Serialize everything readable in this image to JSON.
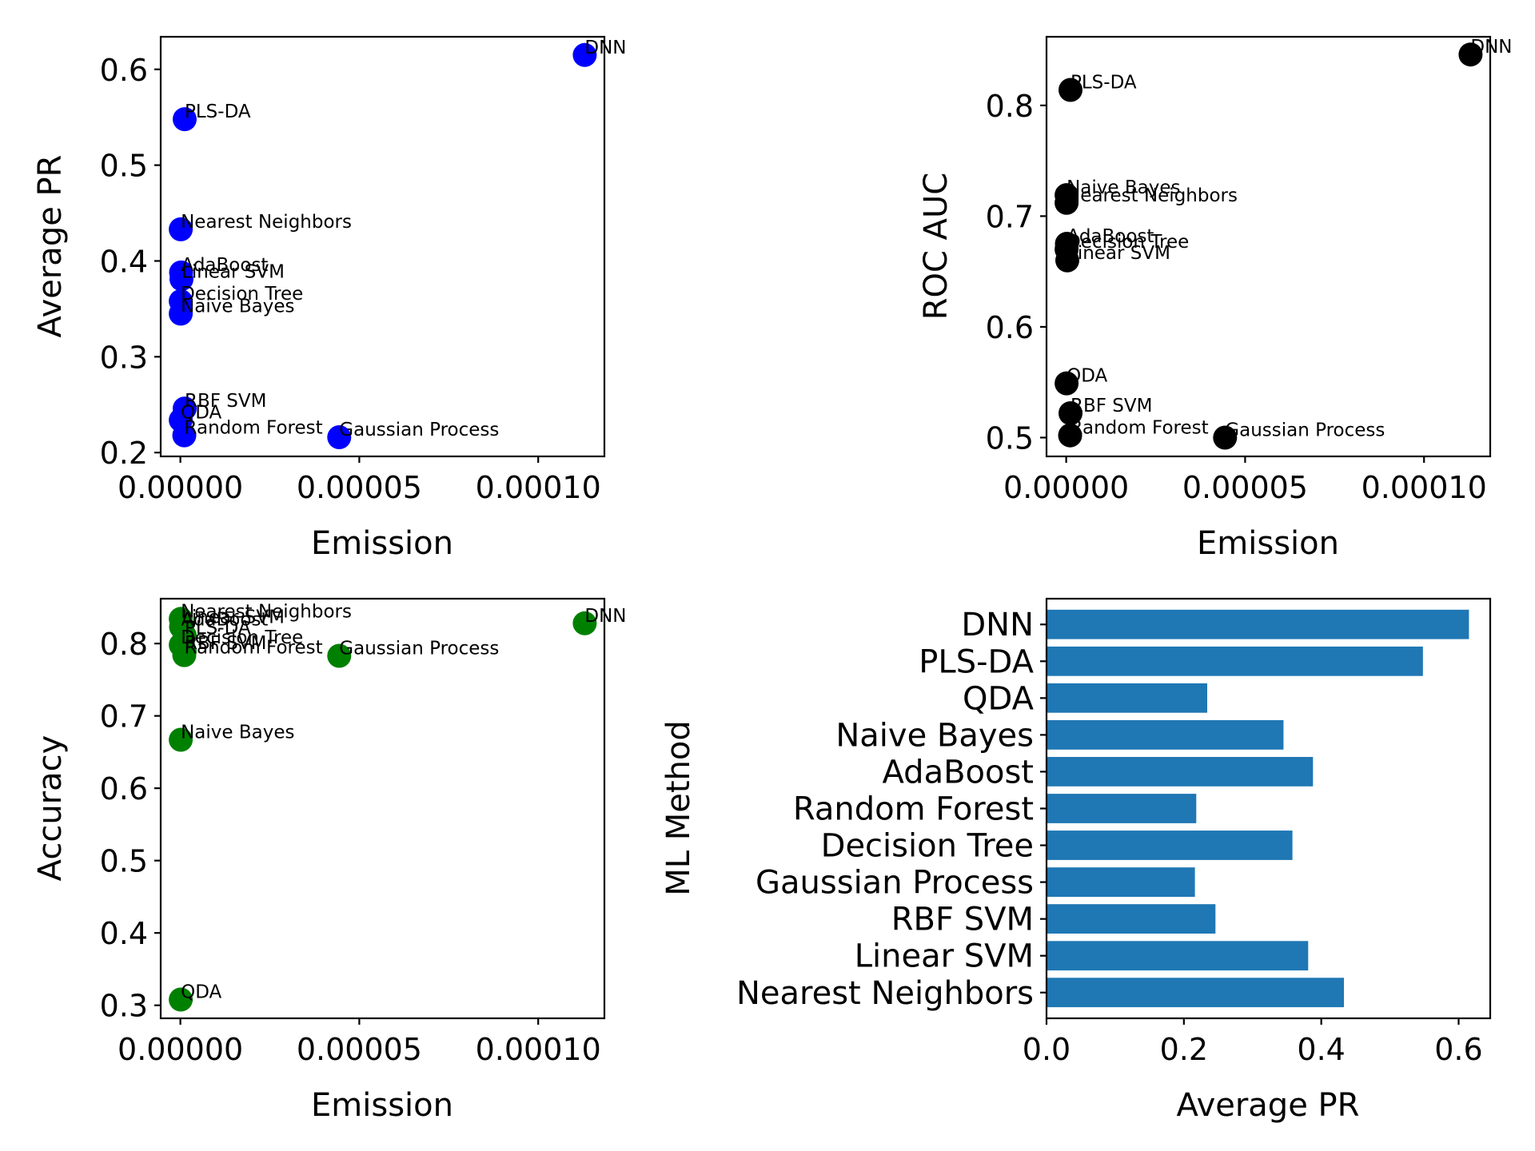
{
  "figure": {
    "background": "#ffffff"
  },
  "chart_data": [
    {
      "id": "avgpr",
      "type": "scatter",
      "title": "",
      "xlabel": "Emission",
      "ylabel": "Average PR",
      "color": "#0000ff",
      "xlim": [
        -5.5e-06,
        0.0001185
      ],
      "ylim": [
        0.196,
        0.634
      ],
      "xticks": [
        0,
        5e-05,
        0.0001
      ],
      "xtick_labels": [
        "0.00000",
        "0.00005",
        "0.00010"
      ],
      "yticks": [
        0.2,
        0.3,
        0.4,
        0.5,
        0.6
      ],
      "ytick_labels": [
        "0.2",
        "0.3",
        "0.4",
        "0.5",
        "0.6"
      ],
      "grid": false,
      "points": [
        {
          "label": "DNN",
          "x": 0.000113,
          "y": 0.615
        },
        {
          "label": "PLS-DA",
          "x": 1.2e-06,
          "y": 0.548
        },
        {
          "label": "Nearest Neighbors",
          "x": 1e-07,
          "y": 0.433
        },
        {
          "label": "AdaBoost",
          "x": 2e-07,
          "y": 0.388
        },
        {
          "label": "Linear SVM",
          "x": 3e-07,
          "y": 0.381
        },
        {
          "label": "Decision Tree",
          "x": 1e-07,
          "y": 0.358
        },
        {
          "label": "Naive Bayes",
          "x": 1e-07,
          "y": 0.345
        },
        {
          "label": "RBF SVM",
          "x": 1.2e-06,
          "y": 0.246
        },
        {
          "label": "QDA",
          "x": 1e-07,
          "y": 0.234
        },
        {
          "label": "Random Forest",
          "x": 1.1e-06,
          "y": 0.218
        },
        {
          "label": "Gaussian Process",
          "x": 4.44e-05,
          "y": 0.216
        }
      ]
    },
    {
      "id": "rocauc",
      "type": "scatter",
      "title": "",
      "xlabel": "Emission",
      "ylabel": "ROC AUC",
      "color": "#000000",
      "xlim": [
        -5.5e-06,
        0.0001185
      ],
      "ylim": [
        0.483,
        0.862
      ],
      "xticks": [
        0,
        5e-05,
        0.0001
      ],
      "xtick_labels": [
        "0.00000",
        "0.00005",
        "0.00010"
      ],
      "yticks": [
        0.5,
        0.6,
        0.7,
        0.8
      ],
      "ytick_labels": [
        "0.5",
        "0.6",
        "0.7",
        "0.8"
      ],
      "grid": false,
      "points": [
        {
          "label": "DNN",
          "x": 0.000113,
          "y": 0.846
        },
        {
          "label": "PLS-DA",
          "x": 1.2e-06,
          "y": 0.814
        },
        {
          "label": "Naive Bayes",
          "x": 1e-07,
          "y": 0.719
        },
        {
          "label": "Nearest Neighbors",
          "x": 1e-07,
          "y": 0.712
        },
        {
          "label": "AdaBoost",
          "x": 2e-07,
          "y": 0.675
        },
        {
          "label": "Decision Tree",
          "x": 1e-07,
          "y": 0.67
        },
        {
          "label": "Linear SVM",
          "x": 3e-07,
          "y": 0.66
        },
        {
          "label": "QDA",
          "x": 1e-07,
          "y": 0.549
        },
        {
          "label": "RBF SVM",
          "x": 1.2e-06,
          "y": 0.522
        },
        {
          "label": "Random Forest",
          "x": 1.1e-06,
          "y": 0.502
        },
        {
          "label": "Gaussian Process",
          "x": 4.44e-05,
          "y": 0.5
        }
      ]
    },
    {
      "id": "accuracy",
      "type": "scatter",
      "title": "",
      "xlabel": "Emission",
      "ylabel": "Accuracy",
      "color": "#008000",
      "xlim": [
        -5.5e-06,
        0.0001185
      ],
      "ylim": [
        0.282,
        0.862
      ],
      "xticks": [
        0,
        5e-05,
        0.0001
      ],
      "xtick_labels": [
        "0.00000",
        "0.00005",
        "0.00010"
      ],
      "yticks": [
        0.3,
        0.4,
        0.5,
        0.6,
        0.7,
        0.8
      ],
      "ytick_labels": [
        "0.3",
        "0.4",
        "0.5",
        "0.6",
        "0.7",
        "0.8"
      ],
      "grid": false,
      "points": [
        {
          "label": "Nearest Neighbors",
          "x": 1e-07,
          "y": 0.834
        },
        {
          "label": "DNN",
          "x": 0.000113,
          "y": 0.828
        },
        {
          "label": "Linear SVM",
          "x": 3e-07,
          "y": 0.826
        },
        {
          "label": "AdaBoost",
          "x": 2e-07,
          "y": 0.823
        },
        {
          "label": "PLS-DA",
          "x": 1.2e-06,
          "y": 0.811
        },
        {
          "label": "Decision Tree",
          "x": 1e-07,
          "y": 0.798
        },
        {
          "label": "RBF SVM",
          "x": 1.2e-06,
          "y": 0.79
        },
        {
          "label": "Random Forest",
          "x": 1.1e-06,
          "y": 0.784
        },
        {
          "label": "Gaussian Process",
          "x": 4.44e-05,
          "y": 0.783
        },
        {
          "label": "Naive Bayes",
          "x": 1e-07,
          "y": 0.667
        },
        {
          "label": "QDA",
          "x": 1e-07,
          "y": 0.308
        }
      ]
    },
    {
      "id": "bars",
      "type": "bar",
      "orientation": "horizontal",
      "title": "",
      "xlabel": "Average PR",
      "ylabel": "ML Method",
      "color": "#1f77b4",
      "xlim": [
        0,
        0.646
      ],
      "xticks": [
        0.0,
        0.2,
        0.4,
        0.6
      ],
      "xtick_labels": [
        "0.0",
        "0.2",
        "0.4",
        "0.6"
      ],
      "grid": false,
      "categories": [
        "DNN",
        "PLS-DA",
        "QDA",
        "Naive Bayes",
        "AdaBoost",
        "Random Forest",
        "Decision Tree",
        "Gaussian Process",
        "RBF SVM",
        "Linear SVM",
        "Nearest Neighbors"
      ],
      "values": [
        0.615,
        0.548,
        0.234,
        0.345,
        0.388,
        0.218,
        0.358,
        0.216,
        0.246,
        0.381,
        0.433
      ]
    }
  ]
}
